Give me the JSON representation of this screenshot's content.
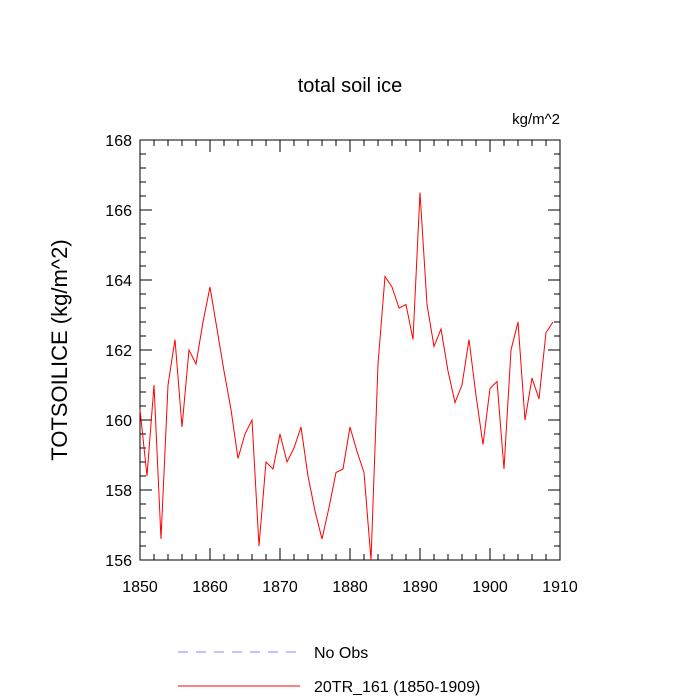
{
  "chart_data": {
    "type": "line",
    "title": "total soil ice",
    "units": "kg/m^2",
    "ylabel": "TOTSOILICE  (kg/m^2)",
    "xlabel": "",
    "xlim": [
      1850,
      1910
    ],
    "ylim": [
      156,
      168
    ],
    "xticks": [
      1850,
      1860,
      1870,
      1880,
      1890,
      1900,
      1910
    ],
    "yticks": [
      156,
      158,
      160,
      162,
      164,
      166,
      168
    ],
    "x_tick_labels": [
      "1850",
      "1860",
      "1870",
      "1880",
      "1890",
      "1900",
      "1910"
    ],
    "y_tick_labels": [
      "156",
      "158",
      "160",
      "162",
      "164",
      "166",
      "168"
    ],
    "grid": false,
    "legend_position": "bottom",
    "series": [
      {
        "name": "No Obs",
        "style": "dashed",
        "color": "#8a8aff",
        "x": [],
        "values": []
      },
      {
        "name": "20TR_161 (1850-1909)",
        "style": "solid",
        "color": "#ff0000",
        "x": [
          1850,
          1851,
          1852,
          1853,
          1854,
          1855,
          1856,
          1857,
          1858,
          1859,
          1860,
          1861,
          1862,
          1863,
          1864,
          1865,
          1866,
          1867,
          1868,
          1869,
          1870,
          1871,
          1872,
          1873,
          1874,
          1875,
          1876,
          1877,
          1878,
          1879,
          1880,
          1881,
          1882,
          1883,
          1884,
          1885,
          1886,
          1887,
          1888,
          1889,
          1890,
          1891,
          1892,
          1893,
          1894,
          1895,
          1896,
          1897,
          1898,
          1899,
          1900,
          1901,
          1902,
          1903,
          1904,
          1905,
          1906,
          1907,
          1908,
          1909
        ],
        "values": [
          160.3,
          158.4,
          161.0,
          156.6,
          161.0,
          162.3,
          159.8,
          162.0,
          161.6,
          162.8,
          163.8,
          162.6,
          161.4,
          160.3,
          158.9,
          159.6,
          160.0,
          156.4,
          158.8,
          158.6,
          159.6,
          158.8,
          159.2,
          159.8,
          158.4,
          157.4,
          156.6,
          157.5,
          158.5,
          158.6,
          159.8,
          159.1,
          158.5,
          156.0,
          161.6,
          164.1,
          163.8,
          163.2,
          163.3,
          162.3,
          166.5,
          163.3,
          162.1,
          162.6,
          161.4,
          160.5,
          161.0,
          162.3,
          160.7,
          159.3,
          160.9,
          161.1,
          158.6,
          162.0,
          162.8,
          160.0,
          161.2,
          160.6,
          162.5,
          162.8
        ]
      }
    ]
  }
}
